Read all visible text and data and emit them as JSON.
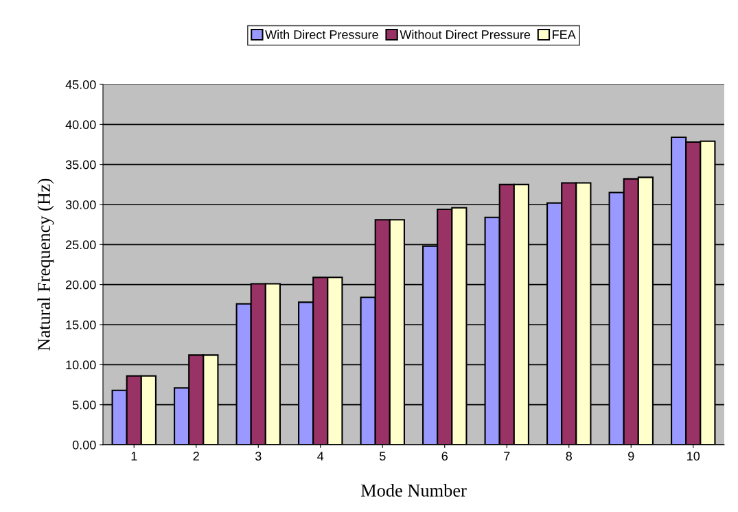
{
  "chart_data": {
    "type": "bar",
    "xlabel": "Mode Number",
    "ylabel": "Natural Frequency (Hz)",
    "categories": [
      "1",
      "2",
      "3",
      "4",
      "5",
      "6",
      "7",
      "8",
      "9",
      "10"
    ],
    "series": [
      {
        "name": "With Direct Pressure",
        "color": "#9999ff",
        "values": [
          6.8,
          7.1,
          17.6,
          17.8,
          18.4,
          24.8,
          28.4,
          30.2,
          31.5,
          38.4
        ]
      },
      {
        "name": "Without Direct Pressure",
        "color": "#993366",
        "values": [
          8.6,
          11.2,
          20.1,
          20.9,
          28.1,
          29.4,
          32.5,
          32.7,
          33.2,
          37.8
        ]
      },
      {
        "name": "FEA",
        "color": "#ffffcc",
        "values": [
          8.6,
          11.2,
          20.1,
          20.9,
          28.1,
          29.6,
          32.5,
          32.7,
          33.4,
          37.9
        ]
      }
    ],
    "ylim": [
      0,
      45
    ],
    "yticks": [
      {
        "value": 0,
        "label": "0.00"
      },
      {
        "value": 5,
        "label": "5.00"
      },
      {
        "value": 10,
        "label": "10.00"
      },
      {
        "value": 15,
        "label": "15.00"
      },
      {
        "value": 20,
        "label": "20.00"
      },
      {
        "value": 25,
        "label": "25.00"
      },
      {
        "value": 30,
        "label": "30.00"
      },
      {
        "value": 35,
        "label": "35.00"
      },
      {
        "value": 40,
        "label": "40.00"
      },
      {
        "value": 45,
        "label": "45.00"
      }
    ],
    "grid": "y",
    "legend": "top"
  }
}
